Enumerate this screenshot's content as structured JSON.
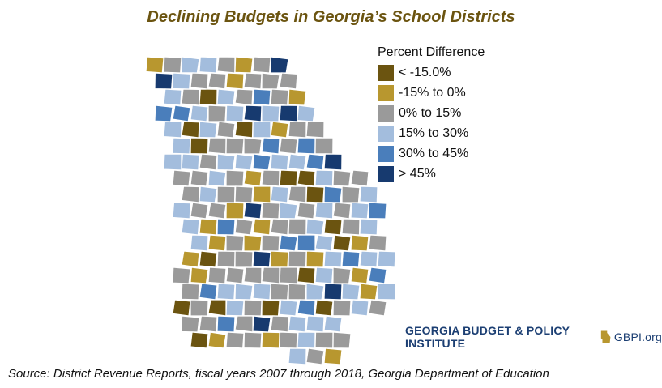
{
  "title": "Declining Budgets in Georgia’s School Districts",
  "legend": {
    "title": "Percent Difference",
    "items": [
      {
        "label": "< -15.0%",
        "color": "#6b5410"
      },
      {
        "label": "-15% to 0%",
        "color": "#b8972f"
      },
      {
        "label": "0% to 15%",
        "color": "#9a9a9a"
      },
      {
        "label": "15% to 30%",
        "color": "#a3bddd"
      },
      {
        "label": "30% to 45%",
        "color": "#4a7ebb"
      },
      {
        "label": "> 45%",
        "color": "#173a6f"
      }
    ]
  },
  "brand": {
    "name": "GEORGIA BUDGET & POLICY INSTITUTE",
    "site": "GBPI.org"
  },
  "source": "Source: District Revenue Reports, fiscal years 2007 through 2018, Georgia Department of Education"
}
